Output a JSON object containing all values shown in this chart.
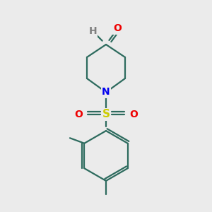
{
  "background_color": "#ebebeb",
  "bond_color": "#2d6b5e",
  "N_color": "#0000ee",
  "O_color": "#ee0000",
  "S_color": "#cccc00",
  "H_color": "#808080",
  "line_width": 1.6,
  "font_size": 10,
  "fig_size": [
    3.0,
    3.0
  ],
  "dpi": 100,
  "xlim": [
    0,
    10
  ],
  "ylim": [
    0,
    10
  ]
}
